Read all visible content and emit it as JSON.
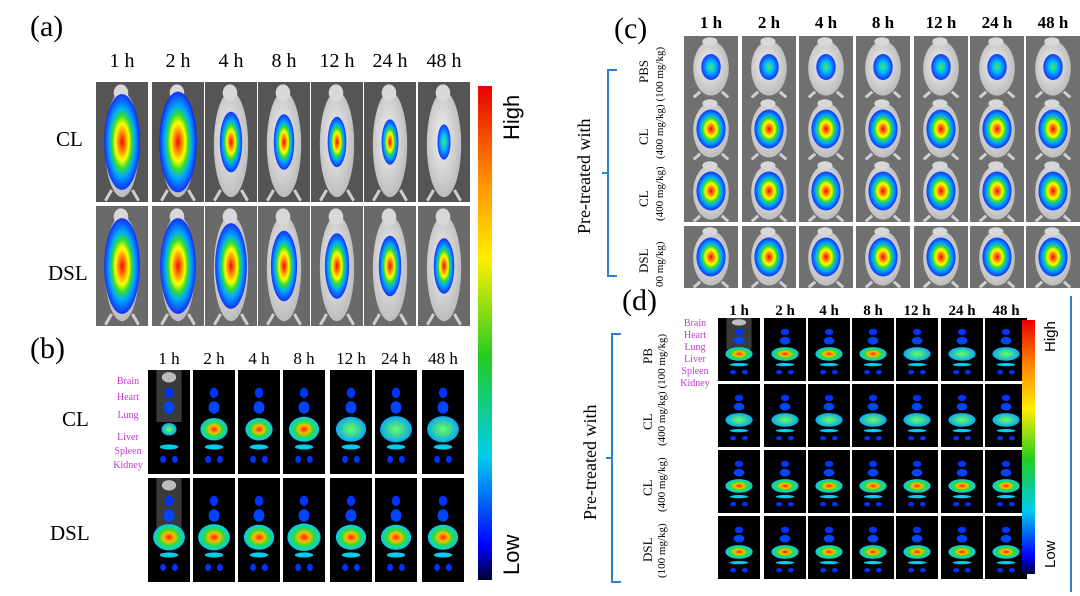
{
  "panels": {
    "a": {
      "label": "(a)",
      "times": [
        "1 h",
        "2 h",
        "4 h",
        "8 h",
        "12 h",
        "24 h",
        "48 h"
      ],
      "rows": [
        "CL",
        "DSL"
      ]
    },
    "b": {
      "label": "(b)",
      "times": [
        "1 h",
        "2 h",
        "4 h",
        "8 h",
        "12 h",
        "24 h",
        "48 h"
      ],
      "rows": [
        "CL",
        "DSL"
      ],
      "organs": [
        "Brain",
        "Heart",
        "Lung",
        "Liver",
        "Spleen",
        "Kidney"
      ]
    },
    "c": {
      "label": "(c)",
      "times": [
        "1 h",
        "2 h",
        "4 h",
        "8 h",
        "12 h",
        "24 h",
        "48 h"
      ],
      "pretreated": "Pre-treated with",
      "rows": [
        {
          "l1": "PBS",
          "l2": ""
        },
        {
          "l1": "CL",
          "l2": "(400 mg/kg) (100 mg/kg)"
        },
        {
          "l1": "CL",
          "l2": "(400 mg/kg)"
        },
        {
          "l1": "DSL",
          "l2": "00 mg/kg)"
        }
      ]
    },
    "d": {
      "label": "(d)",
      "times": [
        "1 h",
        "2 h",
        "4 h",
        "8 h",
        "12 h",
        "24 h",
        "48 h"
      ],
      "pretreated": "Pre-treated with",
      "organs": [
        "Brain",
        "Heart",
        "Lung",
        "Liver",
        "Spleen",
        "Kidney"
      ],
      "rows": [
        {
          "l1": "PB",
          "l2": ""
        },
        {
          "l1": "CL",
          "l2": "(400 mg/kg) (100 mg/kg)"
        },
        {
          "l1": "CL",
          "l2": "(400 mg/kg)"
        },
        {
          "l1": "DSL",
          "l2": "(100 mg/kg)"
        }
      ]
    }
  },
  "colorbar_main": {
    "high": "High",
    "low": "Low"
  },
  "colorbar_d": {
    "high": "High",
    "low": "Low"
  },
  "colors": {
    "organ_label": "#c23ad0",
    "bracket": "#2a7fd0"
  }
}
